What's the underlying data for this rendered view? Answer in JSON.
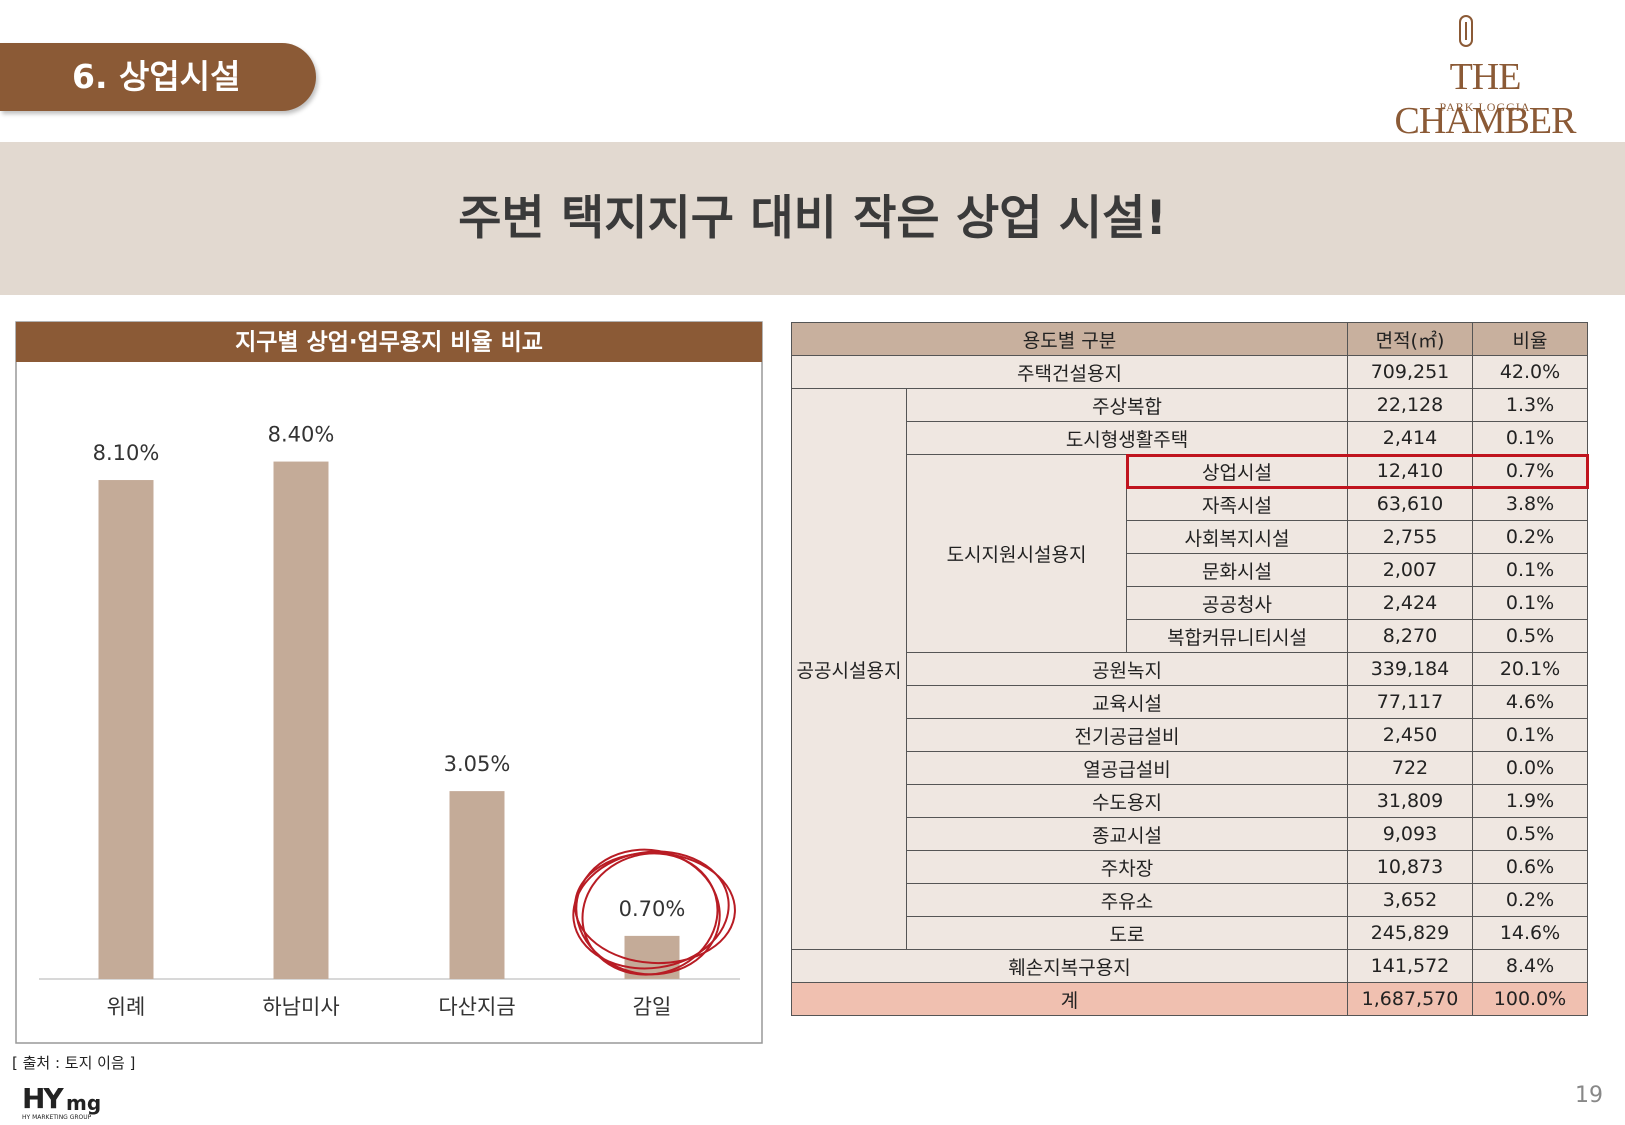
{
  "header": {
    "section": "6. 상업시설",
    "headline": "주변 택지지구 대비 작은 상업 시설!",
    "logo_main": "THE CHAMBER",
    "logo_sub": "PARK LOGGIA"
  },
  "chart_data": {
    "type": "bar",
    "title": "지구별 상업·업무용지 비율 비교",
    "categories": [
      "위례",
      "하남미사",
      "다산지금",
      "감일"
    ],
    "values": [
      8.1,
      8.4,
      3.05,
      0.7
    ],
    "value_labels": [
      "8.10%",
      "8.40%",
      "3.05%",
      "0.70%"
    ],
    "color": "#c4ab98",
    "ylim": [
      0,
      10
    ]
  },
  "table": {
    "header": [
      "용도별 구분",
      "면적(㎡)",
      "비율"
    ],
    "sections": [
      {
        "label": "주택건설용지",
        "area": "709,251",
        "ratio": "42.0%"
      },
      {
        "label": "공공시설용지",
        "children": [
          {
            "label": "주상복합",
            "area": "22,128",
            "ratio": "1.3%"
          },
          {
            "label": "도시형생활주택",
            "area": "2,414",
            "ratio": "0.1%"
          },
          {
            "label": "도시지원시설용지",
            "children": [
              {
                "label": "상업시설",
                "area": "12,410",
                "ratio": "0.7%",
                "highlight": true
              },
              {
                "label": "자족시설",
                "area": "63,610",
                "ratio": "3.8%"
              },
              {
                "label": "사회복지시설",
                "area": "2,755",
                "ratio": "0.2%"
              },
              {
                "label": "문화시설",
                "area": "2,007",
                "ratio": "0.1%"
              },
              {
                "label": "공공청사",
                "area": "2,424",
                "ratio": "0.1%"
              },
              {
                "label": "복합커뮤니티시설",
                "area": "8,270",
                "ratio": "0.5%"
              }
            ]
          },
          {
            "label": "공원녹지",
            "area": "339,184",
            "ratio": "20.1%"
          },
          {
            "label": "교육시설",
            "area": "77,117",
            "ratio": "4.6%"
          },
          {
            "label": "전기공급설비",
            "area": "2,450",
            "ratio": "0.1%"
          },
          {
            "label": "열공급설비",
            "area": "722",
            "ratio": "0.0%"
          },
          {
            "label": "수도용지",
            "area": "31,809",
            "ratio": "1.9%"
          },
          {
            "label": "종교시설",
            "area": "9,093",
            "ratio": "0.5%"
          },
          {
            "label": "주차장",
            "area": "10,873",
            "ratio": "0.6%"
          },
          {
            "label": "주유소",
            "area": "3,652",
            "ratio": "0.2%"
          },
          {
            "label": "도로",
            "area": "245,829",
            "ratio": "14.6%"
          }
        ]
      },
      {
        "label": "훼손지복구용지",
        "area": "141,572",
        "ratio": "8.4%"
      }
    ],
    "total": {
      "label": "계",
      "area": "1,687,570",
      "ratio": "100.0%"
    }
  },
  "footer": {
    "source": "[ 출처 : 토지 이음 ]",
    "brand": "HY",
    "brand_suffix": "mg",
    "brand_sub": "HY MARKETING GROUP",
    "page": "19"
  }
}
